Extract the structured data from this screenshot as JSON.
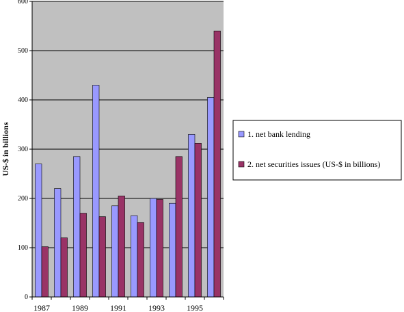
{
  "chart_data": {
    "type": "bar",
    "title": "",
    "xlabel": "",
    "ylabel": "US-$ in billions",
    "ylim": [
      0,
      600
    ],
    "yticks": [
      0,
      100,
      200,
      300,
      400,
      500,
      600
    ],
    "categories": [
      "1987",
      "1988",
      "1989",
      "1990",
      "1991",
      "1992",
      "1993",
      "1994",
      "1995",
      "1996"
    ],
    "x_tick_labels_shown": [
      "1987",
      "",
      "1989",
      "",
      "1991",
      "",
      "1993",
      "",
      "1995",
      ""
    ],
    "series": [
      {
        "name": "1. net bank lending",
        "color": "#9999ff",
        "values": [
          270,
          220,
          285,
          430,
          185,
          165,
          200,
          190,
          330,
          405
        ]
      },
      {
        "name": "2. net securities issues (US-$ in billions)",
        "color": "#993366",
        "values": [
          102,
          120,
          170,
          163,
          205,
          151,
          198,
          285,
          312,
          540
        ]
      }
    ],
    "plot_background": "#c0c0c0",
    "grid": true,
    "legend_position": "right"
  }
}
